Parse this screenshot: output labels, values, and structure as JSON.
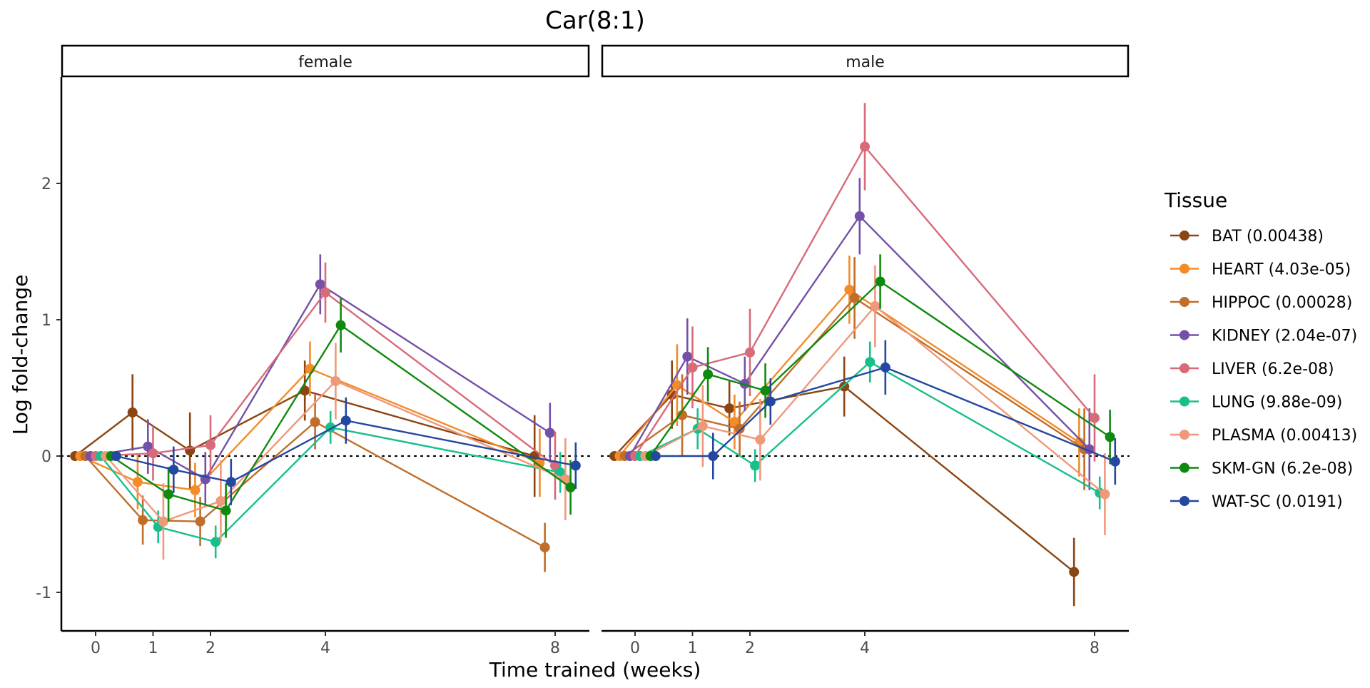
{
  "chart_data": {
    "type": "line",
    "title": "Car(8:1)",
    "xlabel": "Time trained (weeks)",
    "ylabel": "Log fold-change",
    "x_ticks": [
      0,
      1,
      2,
      4,
      8
    ],
    "y_ticks": [
      -1,
      0,
      1,
      2
    ],
    "ylim": [
      -1.3,
      2.8
    ],
    "reference_line": 0,
    "grid": false,
    "legend": {
      "title": "Tissue",
      "placement": "right"
    },
    "facets": [
      "female",
      "male"
    ],
    "series": [
      {
        "name": "BAT (0.00438)",
        "color": "#8B4513",
        "female": {
          "y": [
            0,
            0.32,
            0.04,
            0.48,
            0.0
          ],
          "err": [
            0,
            0.28,
            0.28,
            0.22,
            0.3
          ]
        },
        "male": {
          "y": [
            0,
            0.45,
            0.35,
            0.51,
            -0.85
          ],
          "err": [
            0,
            0.25,
            0.2,
            0.22,
            0.25
          ]
        }
      },
      {
        "name": "HEART (4.03e-05)",
        "color": "#F28C28",
        "female": {
          "y": [
            0,
            -0.19,
            -0.25,
            0.64,
            -0.05
          ],
          "err": [
            0,
            0.2,
            0.2,
            0.2,
            0.25
          ]
        },
        "male": {
          "y": [
            0,
            0.52,
            0.25,
            1.22,
            0.1
          ],
          "err": [
            0,
            0.3,
            0.2,
            0.25,
            0.25
          ]
        }
      },
      {
        "name": "HIPPOC (0.00028)",
        "color": "#C06E2A",
        "female": {
          "y": [
            0,
            -0.47,
            -0.48,
            0.25,
            -0.67
          ],
          "err": [
            0,
            0.18,
            0.18,
            0.2,
            0.18
          ]
        },
        "male": {
          "y": [
            0,
            0.3,
            0.2,
            1.16,
            0.05
          ],
          "err": [
            0,
            0.3,
            0.2,
            0.3,
            0.3
          ]
        }
      },
      {
        "name": "KIDNEY (2.04e-07)",
        "color": "#7451A8",
        "female": {
          "y": [
            0,
            0.07,
            -0.17,
            1.26,
            0.17
          ],
          "err": [
            0,
            0.2,
            0.2,
            0.22,
            0.22
          ]
        },
        "male": {
          "y": [
            0,
            0.73,
            0.53,
            1.76,
            0.05
          ],
          "err": [
            0,
            0.28,
            0.2,
            0.28,
            0.3
          ]
        }
      },
      {
        "name": "LIVER (6.2e-08)",
        "color": "#D86A7A",
        "female": {
          "y": [
            0,
            0.02,
            0.08,
            1.2,
            -0.07
          ],
          "err": [
            0,
            0.2,
            0.22,
            0.22,
            0.25
          ]
        },
        "male": {
          "y": [
            0,
            0.65,
            0.76,
            2.27,
            0.28
          ],
          "err": [
            0,
            0.3,
            0.32,
            0.32,
            0.32
          ]
        }
      },
      {
        "name": "LUNG (9.88e-09)",
        "color": "#17BF8C",
        "female": {
          "y": [
            0,
            -0.52,
            -0.63,
            0.21,
            -0.12
          ],
          "err": [
            0,
            0.12,
            0.12,
            0.12,
            0.15
          ]
        },
        "male": {
          "y": [
            0,
            0.2,
            -0.07,
            0.69,
            -0.27
          ],
          "err": [
            0,
            0.15,
            0.12,
            0.15,
            0.12
          ]
        }
      },
      {
        "name": "PLASMA (0.00413)",
        "color": "#F0987A",
        "female": {
          "y": [
            0,
            -0.48,
            -0.33,
            0.55,
            -0.17
          ],
          "err": [
            0,
            0.28,
            0.3,
            0.28,
            0.3
          ]
        },
        "male": {
          "y": [
            0,
            0.22,
            0.12,
            1.1,
            -0.28
          ],
          "err": [
            0,
            0.3,
            0.3,
            0.3,
            0.3
          ]
        }
      },
      {
        "name": "SKM-GN (6.2e-08)",
        "color": "#0F8A0F",
        "female": {
          "y": [
            0,
            -0.28,
            -0.4,
            0.96,
            -0.23
          ],
          "err": [
            0,
            0.2,
            0.2,
            0.2,
            0.2
          ]
        },
        "male": {
          "y": [
            0,
            0.6,
            0.48,
            1.28,
            0.14
          ],
          "err": [
            0,
            0.2,
            0.2,
            0.2,
            0.2
          ]
        }
      },
      {
        "name": "WAT-SC (0.0191)",
        "color": "#2447A0",
        "female": {
          "y": [
            0,
            -0.1,
            -0.19,
            0.26,
            -0.07
          ],
          "err": [
            0,
            0.17,
            0.17,
            0.17,
            0.17
          ]
        },
        "male": {
          "y": [
            0,
            0.0,
            0.4,
            0.65,
            -0.04
          ],
          "err": [
            0,
            0.17,
            0.17,
            0.2,
            0.17
          ]
        }
      }
    ]
  }
}
